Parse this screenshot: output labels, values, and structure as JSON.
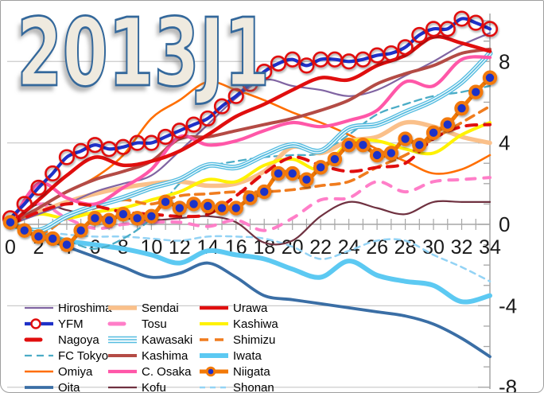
{
  "chart_data": {
    "type": "line",
    "title": "2013J1",
    "x_axis": {
      "tick_labels": [
        "0",
        "2",
        "4",
        "6",
        "8",
        "10",
        "12",
        "14",
        "16",
        "18",
        "20",
        "22",
        "24",
        "26",
        "28",
        "30",
        "32",
        "34"
      ],
      "tick_values": [
        0,
        2,
        4,
        6,
        8,
        10,
        12,
        14,
        16,
        18,
        20,
        22,
        24,
        26,
        28,
        30,
        32,
        34
      ],
      "range": [
        0,
        34
      ]
    },
    "y_axis": {
      "tick_labels": [
        "8",
        "4",
        "0",
        "-4",
        "-8"
      ],
      "tick_values": [
        8,
        4,
        0,
        -4,
        -8
      ],
      "range": [
        -8.3,
        10.3
      ],
      "side": "right"
    },
    "grid": "horizontal",
    "legend_position": "bottom-left",
    "x_even": [
      0,
      2,
      4,
      6,
      8,
      10,
      12,
      14,
      16,
      18,
      20,
      22,
      24,
      26,
      28,
      30,
      32,
      34
    ],
    "x_all": [
      0,
      1,
      2,
      3,
      4,
      5,
      6,
      7,
      8,
      9,
      10,
      11,
      12,
      13,
      14,
      15,
      16,
      17,
      18,
      19,
      20,
      21,
      22,
      23,
      24,
      25,
      26,
      27,
      28,
      29,
      30,
      31,
      32,
      33,
      34
    ],
    "series": [
      {
        "name": "Hiroshima",
        "color": "#8064A2",
        "width": 2.2,
        "x": "even",
        "values": [
          0,
          0.5,
          1,
          1.6,
          2,
          2.4,
          3.6,
          4.9,
          6.2,
          7.1,
          6.8,
          6.6,
          6.3,
          6.6,
          7.3,
          8,
          8.8,
          9.4
        ]
      },
      {
        "name": "YFM",
        "color": "#1F31C8",
        "width": 4.2,
        "x": "all",
        "marker": {
          "shape": "open-circle",
          "stroke": "#E00E0E"
        },
        "values": [
          0.3,
          1,
          1.8,
          2.5,
          3.3,
          3.6,
          3.9,
          3.7,
          3.8,
          4,
          4,
          4.3,
          4.6,
          4.9,
          5.2,
          5.8,
          6.3,
          6.9,
          7.5,
          7.9,
          8.1,
          7.8,
          8.1,
          8.1,
          8,
          8.1,
          8.3,
          8.4,
          8.7,
          9.3,
          9.6,
          9.6,
          10.1,
          9.9,
          9.6
        ]
      },
      {
        "name": "Nagoya",
        "color": "#E00E0E",
        "width": 4,
        "dash": "13 10",
        "x": "even",
        "values": [
          0,
          0.6,
          1,
          0.9,
          0.6,
          0.5,
          0.4,
          0.5,
          1.4,
          2.5,
          3.3,
          2.9,
          2.6,
          2.8,
          3,
          4.2,
          4.8,
          4.9
        ]
      },
      {
        "name": "FC Tokyo",
        "color": "#4BACC6",
        "width": 2.3,
        "dash": "9 6",
        "x": "even",
        "values": [
          0,
          -0.4,
          -0.8,
          -1.2,
          -0.7,
          0.3,
          2,
          2.8,
          3.1,
          3.3,
          3.4,
          3.5,
          4.4,
          5.4,
          5.9,
          6.3,
          6.5,
          6.8
        ]
      },
      {
        "name": "Omiya",
        "color": "#FF6E00",
        "width": 2.6,
        "x": "even",
        "values": [
          0,
          0.8,
          1.6,
          2.3,
          3.4,
          5.2,
          6.1,
          7,
          6.6,
          6.1,
          5.5,
          5,
          4.4,
          3.7,
          3.1,
          2.5,
          2.7,
          3.4
        ]
      },
      {
        "name": "Oita",
        "color": "#3A6EA5",
        "width": 3.8,
        "x": "even",
        "values": [
          0,
          -0.6,
          -1.1,
          -1.6,
          -2.1,
          -2.6,
          -2.4,
          -1.9,
          -2.6,
          -3.5,
          -3.7,
          -3.9,
          -4.1,
          -4.3,
          -4.5,
          -4.9,
          -5.6,
          -6.5
        ]
      },
      {
        "name": "Sendai",
        "color": "#FAC08A",
        "width": 5.5,
        "x": "even",
        "values": [
          0,
          0.6,
          1.1,
          1.5,
          1.8,
          2,
          2.1,
          1.9,
          2,
          2.6,
          3.8,
          3.5,
          4.1,
          4.3,
          5,
          4.8,
          4.3,
          4
        ]
      },
      {
        "name": "Tosu",
        "color": "#FF7EC8",
        "width": 4,
        "dash": "11 11",
        "x": "even",
        "values": [
          0,
          1,
          0.3,
          -0.2,
          0,
          0.1,
          0.1,
          -0.1,
          0.2,
          -0.3,
          0.3,
          1.2,
          1.3,
          2.1,
          1.6,
          2.1,
          2.2,
          2.3
        ]
      },
      {
        "name": "Kawasaki",
        "color": "#55BCE0",
        "width": 2,
        "style": "triple",
        "x": "even",
        "values": [
          0,
          -0.3,
          0.4,
          0.9,
          1.3,
          1.8,
          2.2,
          2.9,
          2.8,
          3.4,
          3.9,
          3.6,
          4.7,
          4.9,
          5.5,
          6.1,
          7,
          8.4
        ]
      },
      {
        "name": "Kashima",
        "color": "#B44B45",
        "width": 4,
        "x": "even",
        "values": [
          0,
          0.8,
          1.6,
          2.2,
          2.6,
          3.1,
          4.2,
          4.3,
          4.6,
          4.9,
          5.2,
          5.6,
          6.1,
          6.9,
          7.4,
          7.8,
          8.4,
          8.6
        ]
      },
      {
        "name": "C. Osaka",
        "color": "#FF57A8",
        "width": 4.2,
        "x": "even",
        "values": [
          0,
          2,
          1.3,
          1,
          1.8,
          2.7,
          4.3,
          3.9,
          4.1,
          4.6,
          5,
          4.8,
          5.1,
          5.6,
          7,
          6.8,
          8.1,
          8.2
        ]
      },
      {
        "name": "Kofu",
        "color": "#6F3140",
        "width": 2.2,
        "x": "even",
        "values": [
          0,
          1,
          0.7,
          0.4,
          0.3,
          0.2,
          0.3,
          0.4,
          0.1,
          -0.9,
          -0.8,
          0.4,
          1.1,
          0.8,
          0.5,
          1.1,
          1.1,
          1.1
        ]
      },
      {
        "name": "Urawa",
        "color": "#E00E0E",
        "width": 4.5,
        "x": "even",
        "values": [
          0,
          1.2,
          2.4,
          3.3,
          2.9,
          3.1,
          3.6,
          4.4,
          5.3,
          5.9,
          6.6,
          7.2,
          7.1,
          7.8,
          8.3,
          9.2,
          8.9,
          8.5
        ]
      },
      {
        "name": "Kashiwa",
        "color": "#FFF200",
        "width": 4,
        "x": "even",
        "values": [
          0,
          0.5,
          0.3,
          0.6,
          0.8,
          1.2,
          1.6,
          2.2,
          2.1,
          2.9,
          3.2,
          2.7,
          4,
          4.1,
          3.7,
          3.5,
          4.4,
          5
        ]
      },
      {
        "name": "Shimizu",
        "color": "#F07C1E",
        "width": 3.6,
        "dash": "11 8",
        "x": "even",
        "values": [
          0,
          -0.5,
          0.3,
          0.8,
          1.2,
          1,
          1.4,
          1.5,
          1.6,
          1.6,
          1.7,
          1.9,
          2.1,
          2.8,
          3.4,
          4.2,
          5,
          5.8
        ]
      },
      {
        "name": "Iwata",
        "color": "#5CC9F2",
        "width": 6,
        "x": "even",
        "values": [
          0,
          -0.4,
          -0.8,
          -1,
          -1.2,
          -1.5,
          -1.9,
          -1.3,
          -1.5,
          -1.7,
          -2.2,
          -2.6,
          -1.8,
          -2.5,
          -2.8,
          -3,
          -3.8,
          -3.5
        ]
      },
      {
        "name": "Niigata",
        "color": "#F27907",
        "width": 5,
        "x": "all",
        "marker": {
          "shape": "filled-circle",
          "fill": "#1F31C8",
          "ring": "#F27907"
        },
        "values": [
          0.1,
          -0.3,
          -0.6,
          -0.7,
          -1,
          -0.3,
          0.3,
          0.2,
          0.5,
          0.3,
          0.4,
          1.1,
          0.8,
          1,
          0.9,
          0.8,
          0.8,
          1.3,
          1.6,
          2.5,
          2.5,
          2.2,
          2.8,
          3.2,
          3.9,
          3.9,
          3.4,
          3.5,
          4.2,
          3.9,
          4.5,
          4.9,
          5.7,
          6.5,
          7.2
        ]
      },
      {
        "name": "Shonan",
        "color": "#93D3F5",
        "width": 2.5,
        "dash": "7 6",
        "x": "even",
        "values": [
          0,
          -0.3,
          -0.5,
          -0.6,
          -0.6,
          -0.7,
          -0.8,
          -0.6,
          -0.6,
          -0.7,
          -1.1,
          -1.7,
          -1.3,
          -0.8,
          -0.8,
          -1.5,
          -2.1,
          -2.8
        ]
      }
    ],
    "draw_order": [
      "Shonan",
      "Oita",
      "Iwata",
      "Kofu",
      "Tosu",
      "FC Tokyo",
      "Omiya",
      "Sendai",
      "Kashiwa",
      "Shimizu",
      "Kawasaki",
      "Hiroshima",
      "Kashima",
      "C. Osaka",
      "Nagoya",
      "Urawa",
      "YFM",
      "Niigata"
    ]
  },
  "frame": {
    "border_color": "#9E9E9E",
    "grid_color": "#CBCBCB",
    "axis_color": "#A6A6A6",
    "label_color": "#1A1A1A"
  }
}
